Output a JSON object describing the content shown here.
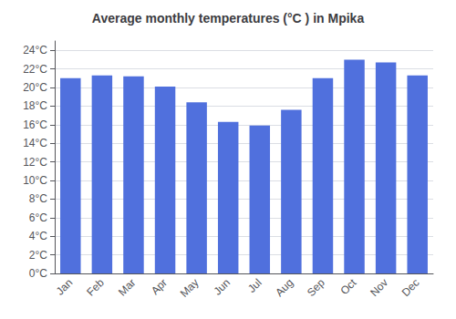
{
  "chart_data": {
    "type": "bar",
    "title": "Average monthly temperatures (°C ) in Mpika",
    "categories": [
      "Jan",
      "Feb",
      "Mar",
      "Apr",
      "May",
      "Jun",
      "Jul",
      "Aug",
      "Sep",
      "Oct",
      "Nov",
      "Dec"
    ],
    "values": [
      21.0,
      21.3,
      21.2,
      20.1,
      18.4,
      16.3,
      15.9,
      17.6,
      21.0,
      23.0,
      22.7,
      21.3
    ],
    "ylim": [
      0,
      25
    ],
    "yticks": [
      {
        "value": 0,
        "label": "0°C"
      },
      {
        "value": 2,
        "label": "2°C"
      },
      {
        "value": 4,
        "label": "4°C"
      },
      {
        "value": 6,
        "label": "6°C"
      },
      {
        "value": 8,
        "label": "8°C"
      },
      {
        "value": 10,
        "label": "10°C"
      },
      {
        "value": 12,
        "label": "12°C"
      },
      {
        "value": 14,
        "label": "14°C"
      },
      {
        "value": 16,
        "label": "16°C"
      },
      {
        "value": 18,
        "label": "18°C"
      },
      {
        "value": 20,
        "label": "20°C"
      },
      {
        "value": 22,
        "label": "22°C"
      },
      {
        "value": 24,
        "label": "24°C"
      }
    ],
    "grid": true
  }
}
